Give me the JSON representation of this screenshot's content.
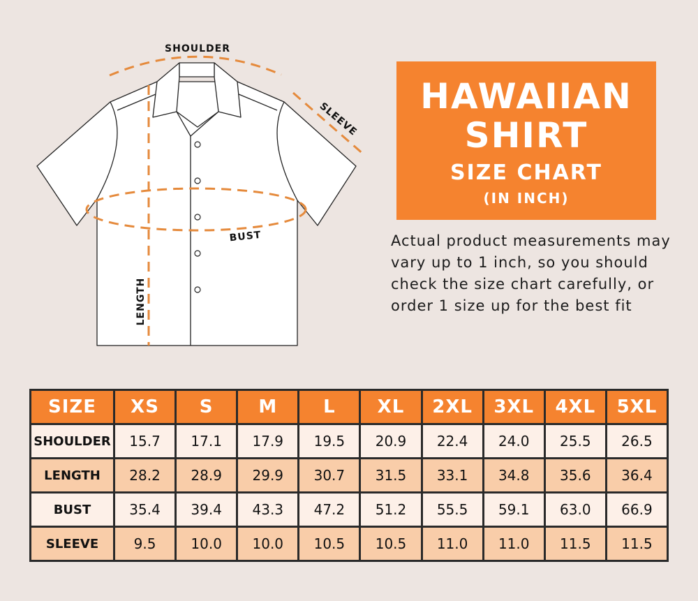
{
  "diagram": {
    "labels": {
      "shoulder": "SHOULDER",
      "sleeve": "SLEEVE",
      "bust": "BUST",
      "length": "LENGTH"
    }
  },
  "title": {
    "line1": "HAWAIIAN",
    "line2": "SHIRT",
    "line3": "SIZE CHART",
    "line4": "(IN INCH)"
  },
  "note": "Actual product measurements may vary up to 1 inch, so you should check the size chart carefully, or order 1 size up for the best fit",
  "colors": {
    "accent": "#f5832f",
    "background": "#ede5e1",
    "row_light": "#fdf0e8",
    "row_dark": "#f9cda9"
  },
  "table": {
    "headers": [
      "SIZE",
      "XS",
      "S",
      "M",
      "L",
      "XL",
      "2XL",
      "3XL",
      "4XL",
      "5XL"
    ],
    "rows": [
      {
        "label": "SHOULDER",
        "values": [
          "15.7",
          "17.1",
          "17.9",
          "19.5",
          "20.9",
          "22.4",
          "24.0",
          "25.5",
          "26.5"
        ]
      },
      {
        "label": "LENGTH",
        "values": [
          "28.2",
          "28.9",
          "29.9",
          "30.7",
          "31.5",
          "33.1",
          "34.8",
          "35.6",
          "36.4"
        ]
      },
      {
        "label": "BUST",
        "values": [
          "35.4",
          "39.4",
          "43.3",
          "47.2",
          "51.2",
          "55.5",
          "59.1",
          "63.0",
          "66.9"
        ]
      },
      {
        "label": "SLEEVE",
        "values": [
          "9.5",
          "10.0",
          "10.0",
          "10.5",
          "10.5",
          "11.0",
          "11.0",
          "11.5",
          "11.5"
        ]
      }
    ]
  }
}
